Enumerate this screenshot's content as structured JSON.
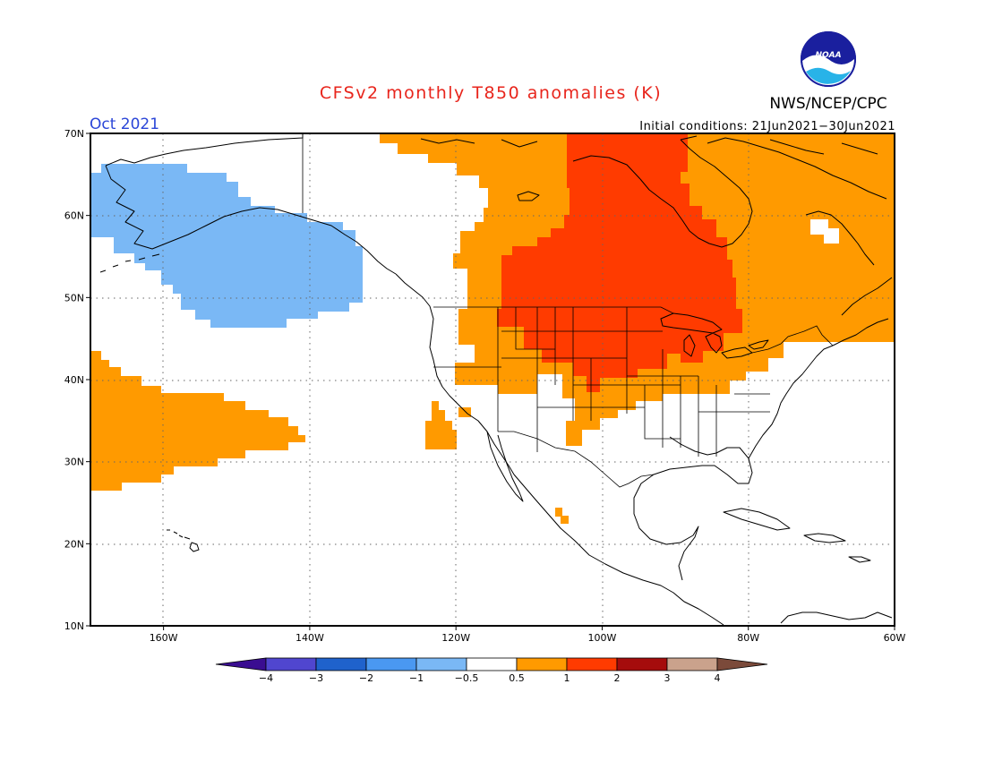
{
  "header": {
    "title": "CFSv2 monthly T850 anomalies (K)",
    "agency": "NWS/NCEP/CPC",
    "month": "Oct 2021",
    "initial_conditions": "Initial conditions: 21Jun2021−30Jun2021",
    "logo_text": "NOAA"
  },
  "map": {
    "lon_range": [
      -170,
      -60
    ],
    "lat_range": [
      10,
      70
    ],
    "lat_ticks": [
      "10N",
      "20N",
      "30N",
      "40N",
      "50N",
      "60N",
      "70N"
    ],
    "lat_tick_values": [
      10,
      20,
      30,
      40,
      50,
      60,
      70
    ],
    "lon_ticks": [
      "160W",
      "140W",
      "120W",
      "100W",
      "80W",
      "60W"
    ],
    "lon_tick_values": [
      -160,
      -140,
      -120,
      -100,
      -80,
      -60
    ],
    "gridlines": "dotted"
  },
  "colorbar": {
    "labels": [
      "−4",
      "−3",
      "−2",
      "−1",
      "−0.5",
      "0.5",
      "1",
      "2",
      "3",
      "4"
    ],
    "colors": [
      "#3a0d91",
      "#5046cf",
      "#1f62cc",
      "#4a98f1",
      "#7ab8f5",
      "#ffffff",
      "#ff9a00",
      "#ff3b00",
      "#a50c0c",
      "#caa28c",
      "#7b4a3a"
    ]
  },
  "anomaly_regions": [
    {
      "name": "Alaska / Gulf of Alaska cool anomaly",
      "category": "-1 to -0.5",
      "color": "#7ab8f5"
    },
    {
      "name": "Subtropical east Pacific warm anomaly",
      "category": "0.5 to 1",
      "color": "#ff9a00"
    },
    {
      "name": "Canada and northern US warm anomaly",
      "category": "0.5 to 1",
      "color": "#ff9a00"
    },
    {
      "name": "Central Canada and Great Plains warm anomaly",
      "category": "1 to 2",
      "color": "#ff3b00"
    },
    {
      "name": "Southern California warm anomaly",
      "category": "0.5 to 1",
      "color": "#ff9a00"
    },
    {
      "name": "Central Mexico warm speck",
      "category": "0.5 to 1",
      "color": "#ff9a00"
    }
  ]
}
